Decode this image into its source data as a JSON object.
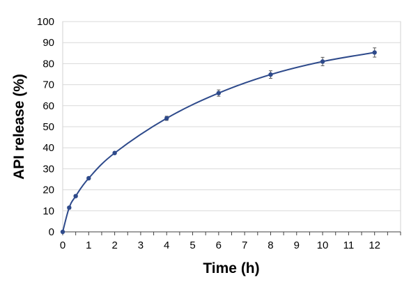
{
  "chart_data": {
    "type": "line",
    "title": "",
    "xlabel": "Time (h)",
    "ylabel": "API release (%)",
    "xlim": [
      0,
      13
    ],
    "ylim": [
      0,
      100
    ],
    "x_ticks": [
      0,
      1,
      2,
      3,
      4,
      5,
      6,
      7,
      8,
      9,
      10,
      11,
      12
    ],
    "y_ticks": [
      0,
      10,
      20,
      30,
      40,
      50,
      60,
      70,
      80,
      90,
      100
    ],
    "grid": "horizontal",
    "legend": "none",
    "series": [
      {
        "x": [
          0,
          0.25,
          0.5,
          1,
          2,
          4,
          6,
          8,
          10,
          12
        ],
        "y": [
          0,
          11.5,
          17,
          25.5,
          37.5,
          54,
          66,
          74.8,
          81,
          85.3
        ],
        "error": [
          0,
          0.6,
          0.6,
          0.6,
          0.6,
          1.0,
          1.5,
          1.8,
          2.0,
          2.2
        ],
        "color": "#2E4A8B"
      }
    ]
  }
}
